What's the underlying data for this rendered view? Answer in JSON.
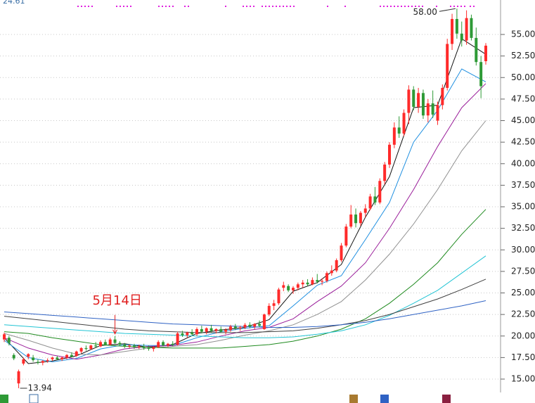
{
  "chart_data": {
    "type": "candlestick",
    "top_left": "24.61",
    "ylim": [
      13.45,
      59.0
    ],
    "yticks": [
      {
        "value": 15,
        "label": "15.00"
      },
      {
        "value": 17.5,
        "label": "17.50"
      },
      {
        "value": 20,
        "label": "20.00"
      },
      {
        "value": 22.5,
        "label": "22.50"
      },
      {
        "value": 25,
        "label": "25.00"
      },
      {
        "value": 27.5,
        "label": "27.50"
      },
      {
        "value": 30,
        "label": "30.00"
      },
      {
        "value": 32.5,
        "label": "32.50"
      },
      {
        "value": 35,
        "label": "35.00"
      },
      {
        "value": 37.5,
        "label": "37.50"
      },
      {
        "value": 40,
        "label": "40.00"
      },
      {
        "value": 42.5,
        "label": "42.50"
      },
      {
        "value": 45,
        "label": "45.00"
      },
      {
        "value": 47.5,
        "label": "47.50"
      },
      {
        "value": 50,
        "label": "50.00"
      },
      {
        "value": 52.5,
        "label": "52.50"
      },
      {
        "value": 55,
        "label": "55.00"
      }
    ],
    "grid": true,
    "up_color": "#ff2a2a",
    "down_color": "#2e9a36",
    "candles": [
      [
        19.6,
        20.4,
        19.3,
        20.2
      ],
      [
        19.8,
        20.0,
        18.9,
        19.2
      ],
      [
        17.8,
        18.0,
        17.2,
        17.4
      ],
      [
        14.5,
        16.1,
        13.94,
        15.9
      ],
      [
        16.8,
        17.5,
        16.6,
        17.3
      ],
      [
        17.6,
        18.0,
        17.3,
        17.9
      ],
      [
        17.5,
        17.8,
        17.0,
        17.2
      ],
      [
        17.0,
        17.3,
        16.7,
        16.9
      ],
      [
        16.9,
        17.2,
        16.6,
        17.1
      ],
      [
        17.1,
        17.4,
        16.9,
        17.2
      ],
      [
        17.3,
        17.6,
        17.1,
        17.5
      ],
      [
        17.5,
        17.7,
        17.2,
        17.3
      ],
      [
        17.3,
        17.6,
        17.1,
        17.5
      ],
      [
        17.5,
        17.9,
        17.3,
        17.8
      ],
      [
        17.8,
        18.1,
        17.5,
        17.6
      ],
      [
        17.7,
        18.3,
        17.6,
        18.2
      ],
      [
        18.2,
        18.7,
        18.0,
        18.6
      ],
      [
        18.6,
        18.9,
        18.3,
        18.5
      ],
      [
        18.5,
        19.0,
        18.4,
        18.9
      ],
      [
        18.9,
        19.3,
        18.6,
        18.8
      ],
      [
        18.8,
        19.5,
        18.7,
        19.3
      ],
      [
        19.3,
        19.6,
        18.9,
        19.0
      ],
      [
        19.0,
        19.8,
        18.9,
        19.6
      ],
      [
        19.6,
        20.0,
        19.1,
        19.2
      ],
      [
        19.2,
        19.4,
        18.8,
        19.0
      ],
      [
        19.0,
        19.2,
        18.6,
        18.8
      ],
      [
        18.8,
        19.0,
        18.6,
        18.9
      ],
      [
        18.9,
        19.1,
        18.5,
        18.7
      ],
      [
        18.7,
        19.0,
        18.5,
        18.8
      ],
      [
        18.8,
        19.1,
        18.4,
        18.6
      ],
      [
        18.6,
        18.9,
        18.3,
        18.5
      ],
      [
        18.5,
        18.8,
        18.2,
        18.7
      ],
      [
        18.7,
        19.5,
        18.6,
        19.3
      ],
      [
        19.3,
        19.5,
        18.8,
        18.9
      ],
      [
        18.9,
        19.2,
        18.7,
        19.1
      ],
      [
        19.1,
        19.4,
        18.8,
        19.0
      ],
      [
        19.0,
        20.5,
        18.9,
        20.3
      ],
      [
        20.3,
        20.6,
        19.9,
        20.1
      ],
      [
        20.1,
        20.5,
        19.8,
        20.4
      ],
      [
        20.4,
        20.8,
        20.1,
        20.2
      ],
      [
        20.2,
        21.0,
        20.0,
        20.8
      ],
      [
        20.8,
        21.2,
        20.3,
        20.5
      ],
      [
        20.5,
        21.0,
        20.2,
        20.9
      ],
      [
        20.9,
        21.3,
        20.4,
        20.6
      ],
      [
        20.6,
        20.9,
        20.3,
        20.8
      ],
      [
        20.8,
        21.1,
        20.4,
        20.5
      ],
      [
        20.5,
        20.9,
        20.2,
        20.7
      ],
      [
        20.7,
        21.3,
        20.5,
        21.1
      ],
      [
        21.1,
        21.4,
        20.7,
        20.9
      ],
      [
        20.9,
        21.2,
        20.6,
        21.0
      ],
      [
        21.0,
        21.5,
        20.8,
        21.3
      ],
      [
        21.3,
        21.6,
        20.9,
        21.1
      ],
      [
        21.1,
        21.5,
        20.8,
        21.4
      ],
      [
        21.4,
        21.8,
        21.0,
        21.2
      ],
      [
        20.8,
        22.6,
        20.7,
        22.5
      ],
      [
        22.5,
        23.8,
        22.3,
        23.5
      ],
      [
        23.5,
        24.2,
        23.0,
        23.8
      ],
      [
        23.8,
        25.6,
        23.6,
        25.4
      ],
      [
        25.6,
        26.3,
        25.2,
        25.9
      ],
      [
        25.8,
        26.0,
        25.1,
        25.3
      ],
      [
        25.3,
        25.8,
        24.9,
        25.6
      ],
      [
        25.6,
        26.2,
        25.3,
        26.0
      ],
      [
        26.0,
        26.5,
        25.6,
        26.2
      ],
      [
        26.2,
        26.6,
        25.8,
        26.0
      ],
      [
        26.0,
        26.8,
        25.9,
        26.5
      ],
      [
        26.5,
        27.2,
        26.1,
        26.3
      ],
      [
        26.3,
        26.7,
        25.9,
        26.4
      ],
      [
        26.4,
        27.5,
        26.2,
        27.3
      ],
      [
        27.3,
        28.2,
        27.0,
        27.6
      ],
      [
        27.6,
        29.0,
        27.4,
        28.8
      ],
      [
        28.8,
        30.8,
        28.6,
        30.5
      ],
      [
        30.5,
        33.0,
        30.3,
        32.7
      ],
      [
        32.7,
        35.2,
        32.5,
        34.1
      ],
      [
        34.1,
        34.8,
        32.6,
        33.1
      ],
      [
        33.1,
        34.5,
        32.8,
        34.3
      ],
      [
        34.3,
        35.3,
        33.8,
        34.8
      ],
      [
        34.8,
        36.5,
        34.6,
        36.2
      ],
      [
        36.2,
        37.3,
        35.2,
        35.5
      ],
      [
        35.5,
        38.3,
        35.3,
        38.0
      ],
      [
        38.0,
        40.2,
        37.6,
        39.9
      ],
      [
        39.9,
        42.5,
        39.5,
        42.2
      ],
      [
        42.2,
        44.8,
        41.8,
        44.2
      ],
      [
        44.2,
        45.5,
        43.0,
        43.5
      ],
      [
        43.5,
        46.3,
        43.2,
        45.9
      ],
      [
        45.9,
        49.1,
        44.6,
        48.6
      ],
      [
        48.6,
        49.0,
        46.2,
        46.6
      ],
      [
        46.6,
        48.8,
        45.9,
        48.2
      ],
      [
        48.2,
        48.6,
        45.2,
        45.6
      ],
      [
        45.6,
        47.5,
        44.8,
        47.0
      ],
      [
        47.0,
        48.5,
        45.3,
        45.7
      ],
      [
        45.0,
        47.2,
        44.5,
        46.8
      ],
      [
        46.8,
        49.2,
        46.3,
        48.8
      ],
      [
        48.8,
        54.5,
        48.5,
        53.9
      ],
      [
        53.9,
        57.4,
        53.2,
        56.8
      ],
      [
        56.8,
        58.0,
        54.5,
        55.1
      ],
      [
        55.1,
        56.5,
        53.6,
        54.3
      ],
      [
        54.3,
        57.8,
        53.8,
        56.9
      ],
      [
        56.9,
        57.3,
        54.3,
        54.6
      ],
      [
        54.6,
        55.8,
        51.4,
        51.8
      ],
      [
        51.8,
        52.5,
        47.6,
        49.0
      ],
      [
        51.9,
        54.0,
        51.5,
        53.7
      ]
    ],
    "ma_x": [
      0,
      5,
      10,
      15,
      20,
      25,
      30,
      35,
      40,
      45,
      50,
      55,
      60,
      65,
      70,
      75,
      80,
      85,
      90,
      95,
      100
    ],
    "series": [
      {
        "color": "#111111",
        "values": [
          19.8,
          16.8,
          17.1,
          17.7,
          18.9,
          19.1,
          18.7,
          19.0,
          20.3,
          20.7,
          21.0,
          21.9,
          25.2,
          26.2,
          28.3,
          33.8,
          38.5,
          46.5,
          46.8,
          54.5,
          52.7
        ]
      },
      {
        "color": "#1e8fe0",
        "values": [
          19.5,
          17.5,
          17.0,
          17.4,
          18.5,
          19.0,
          18.9,
          18.9,
          19.8,
          20.5,
          20.9,
          21.2,
          23.5,
          25.9,
          27.0,
          31.2,
          35.5,
          42.5,
          46.2,
          51.0,
          49.5
        ]
      },
      {
        "color": "#9a1e9a",
        "values": [
          19.8,
          18.6,
          17.8,
          17.3,
          17.8,
          18.5,
          18.8,
          18.9,
          19.3,
          20.0,
          20.6,
          21.0,
          22.0,
          24.0,
          25.8,
          28.5,
          32.5,
          37.0,
          42.0,
          46.5,
          49.3
        ]
      },
      {
        "color": "#909090",
        "values": [
          20.3,
          19.5,
          18.6,
          17.9,
          17.8,
          18.2,
          18.6,
          18.8,
          19.0,
          19.5,
          20.1,
          20.6,
          21.3,
          22.5,
          24.0,
          26.5,
          29.5,
          33.0,
          37.0,
          41.5,
          45.0
        ]
      },
      {
        "color": "#1f8a1f",
        "values": [
          20.5,
          20.3,
          19.8,
          19.4,
          19.0,
          18.8,
          18.7,
          18.6,
          18.6,
          18.6,
          18.8,
          19.0,
          19.4,
          20.0,
          20.8,
          22.0,
          23.8,
          26.0,
          28.5,
          31.8,
          34.7
        ]
      },
      {
        "color": "#22c4d4",
        "values": [
          21.3,
          21.1,
          20.9,
          20.7,
          20.5,
          20.3,
          20.2,
          20.1,
          20.0,
          19.9,
          19.8,
          19.8,
          19.9,
          20.2,
          20.6,
          21.3,
          22.4,
          23.8,
          25.3,
          27.3,
          29.3
        ]
      },
      {
        "color": "#404040",
        "values": [
          22.3,
          22.0,
          21.7,
          21.4,
          21.1,
          20.8,
          20.6,
          20.5,
          20.4,
          20.4,
          20.4,
          20.5,
          20.6,
          20.9,
          21.3,
          21.8,
          22.5,
          23.4,
          24.3,
          25.4,
          26.6
        ]
      },
      {
        "color": "#2f62c4",
        "values": [
          22.8,
          22.6,
          22.4,
          22.2,
          22.0,
          21.8,
          21.6,
          21.4,
          21.3,
          21.2,
          21.1,
          21.0,
          21.0,
          21.1,
          21.3,
          21.6,
          22.0,
          22.5,
          23.0,
          23.5,
          24.1
        ]
      }
    ],
    "annotations": [
      {
        "label": "58.00",
        "value": 58.0
      },
      {
        "label": "13.94",
        "value": 13.94
      }
    ],
    "date_marker": {
      "label": "5月14日",
      "candle": 23
    }
  }
}
